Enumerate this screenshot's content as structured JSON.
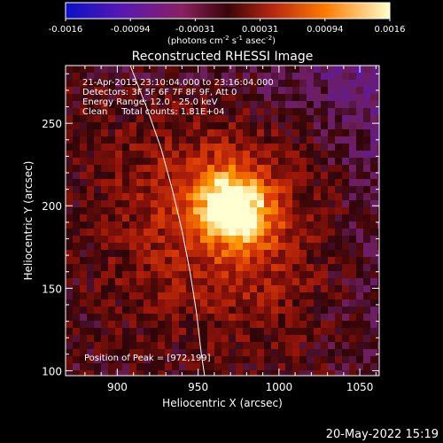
{
  "chart_data": {
    "type": "heatmap",
    "title": "Reconstructed RHESSI Image",
    "xlabel": "Heliocentric X (arcsec)",
    "ylabel": "Heliocentric Y (arcsec)",
    "xlim": [
      868,
      1062
    ],
    "ylim": [
      97,
      285
    ],
    "xticks": [
      900,
      950,
      1000,
      1050
    ],
    "yticks": [
      100,
      150,
      200,
      250
    ],
    "colorbar": {
      "ticks": [
        "-0.0016",
        "-0.00094",
        "-0.00031",
        "0.00031",
        "0.00094",
        "0.0016"
      ],
      "range": [
        -0.0016,
        0.0016
      ],
      "units_main": "(photons cm",
      "units_sup1": "-2",
      "units_mid1": " s",
      "units_sup2": "-1",
      "units_mid2": " asec",
      "units_sup3": "-2",
      "units_end": ")"
    },
    "annotations": {
      "time_range": "21-Apr-2015 23:10:04.000 to 23:16:04.000",
      "detectors": "Detectors: 3F 5F 6F 7F 8F 9F, Att 0",
      "energy": "Energy Range: 12.0 - 25.0 keV",
      "clean": "Clean     Total counts: 1.81E+04",
      "peak": "Position of Peak = [972,199]"
    },
    "peak": [
      972,
      199
    ],
    "limb_curve": [
      [
        908,
        285
      ],
      [
        918,
        260
      ],
      [
        927,
        235
      ],
      [
        934,
        210
      ],
      [
        940,
        185
      ],
      [
        945,
        160
      ],
      [
        949,
        135
      ],
      [
        952,
        110
      ],
      [
        954,
        97
      ]
    ]
  },
  "footer": {
    "date": "20-May-2022 15:19"
  }
}
